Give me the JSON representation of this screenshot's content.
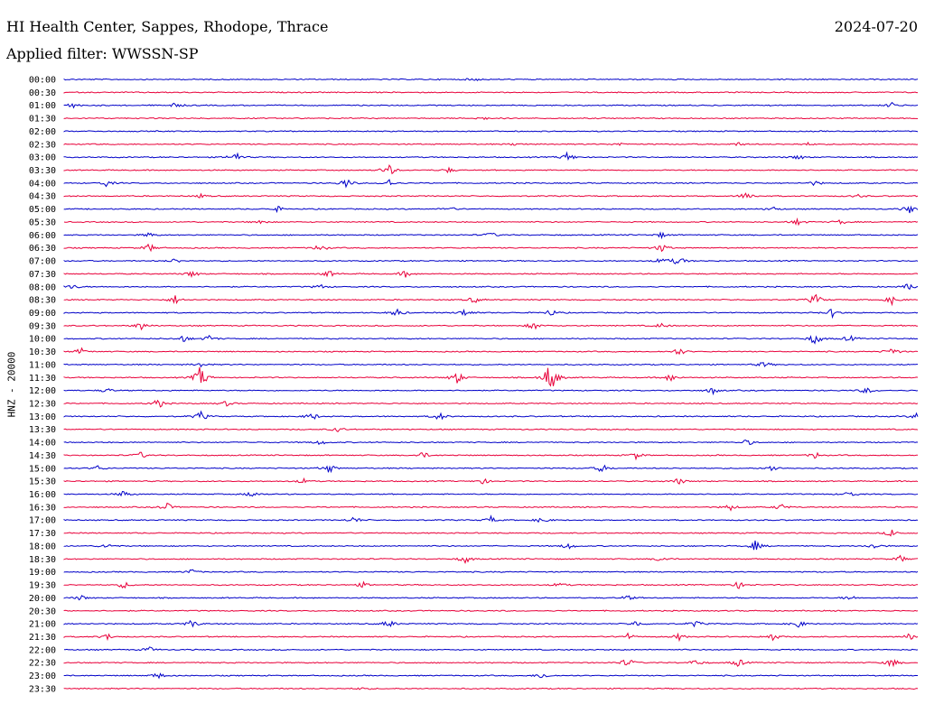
{
  "header": {
    "station": "HI Health Center, Sappes, Rhodope, Thrace",
    "date": "2024-07-20",
    "filter": "Applied filter: WWSSN-SP"
  },
  "colors": {
    "even": "#0000c8",
    "odd": "#e8003a",
    "background": "#ffffff"
  },
  "chart_data": {
    "type": "line",
    "title": "HI Health Center, Sappes, Rhodope, Thrace",
    "ylabel": "HNZ - 20000",
    "grid": false,
    "rows": [
      {
        "label": "00:00",
        "events": [
          {
            "t": 0.48,
            "a": 2
          }
        ]
      },
      {
        "label": "00:30",
        "events": []
      },
      {
        "label": "01:00",
        "events": [
          {
            "t": 0.01,
            "a": 3
          },
          {
            "t": 0.13,
            "a": 3
          },
          {
            "t": 0.97,
            "a": 3
          }
        ]
      },
      {
        "label": "01:30",
        "events": [
          {
            "t": 0.49,
            "a": 2
          }
        ]
      },
      {
        "label": "02:00",
        "events": []
      },
      {
        "label": "02:30",
        "events": [
          {
            "t": 0.53,
            "a": 2
          },
          {
            "t": 0.65,
            "a": 2
          },
          {
            "t": 0.79,
            "a": 2
          },
          {
            "t": 0.87,
            "a": 2
          }
        ]
      },
      {
        "label": "03:00",
        "events": [
          {
            "t": 0.2,
            "a": 7
          },
          {
            "t": 0.59,
            "a": 6
          },
          {
            "t": 0.86,
            "a": 3
          }
        ]
      },
      {
        "label": "03:30",
        "events": [
          {
            "t": 0.38,
            "a": 8
          },
          {
            "t": 0.45,
            "a": 3
          }
        ]
      },
      {
        "label": "04:00",
        "events": [
          {
            "t": 0.05,
            "a": 4
          },
          {
            "t": 0.33,
            "a": 6
          },
          {
            "t": 0.38,
            "a": 5
          },
          {
            "t": 0.88,
            "a": 3
          }
        ]
      },
      {
        "label": "04:30",
        "events": [
          {
            "t": 0.16,
            "a": 2
          },
          {
            "t": 0.8,
            "a": 6
          },
          {
            "t": 0.93,
            "a": 2
          }
        ]
      },
      {
        "label": "05:00",
        "events": [
          {
            "t": 0.25,
            "a": 3
          },
          {
            "t": 0.45,
            "a": 3
          },
          {
            "t": 0.83,
            "a": 3
          },
          {
            "t": 0.99,
            "a": 5
          }
        ]
      },
      {
        "label": "05:30",
        "events": [
          {
            "t": 0.23,
            "a": 3
          },
          {
            "t": 0.86,
            "a": 4
          },
          {
            "t": 0.91,
            "a": 3
          }
        ]
      },
      {
        "label": "06:00",
        "events": [
          {
            "t": 0.1,
            "a": 3
          },
          {
            "t": 0.5,
            "a": 3
          },
          {
            "t": 0.7,
            "a": 3
          }
        ]
      },
      {
        "label": "06:30",
        "events": [
          {
            "t": 0.1,
            "a": 5
          },
          {
            "t": 0.3,
            "a": 5
          },
          {
            "t": 0.7,
            "a": 5
          }
        ]
      },
      {
        "label": "07:00",
        "events": [
          {
            "t": 0.13,
            "a": 3
          },
          {
            "t": 0.7,
            "a": 4
          },
          {
            "t": 0.72,
            "a": 6
          }
        ]
      },
      {
        "label": "07:30",
        "events": [
          {
            "t": 0.15,
            "a": 4
          },
          {
            "t": 0.31,
            "a": 4
          },
          {
            "t": 0.4,
            "a": 4
          }
        ]
      },
      {
        "label": "08:00",
        "events": [
          {
            "t": 0.01,
            "a": 3
          },
          {
            "t": 0.3,
            "a": 3
          },
          {
            "t": 0.99,
            "a": 4
          }
        ]
      },
      {
        "label": "08:30",
        "events": [
          {
            "t": 0.13,
            "a": 5
          },
          {
            "t": 0.48,
            "a": 4
          },
          {
            "t": 0.88,
            "a": 7
          },
          {
            "t": 0.97,
            "a": 5
          }
        ]
      },
      {
        "label": "09:00",
        "events": [
          {
            "t": 0.39,
            "a": 5
          },
          {
            "t": 0.47,
            "a": 5
          },
          {
            "t": 0.57,
            "a": 4
          },
          {
            "t": 0.9,
            "a": 5
          }
        ]
      },
      {
        "label": "09:30",
        "events": [
          {
            "t": 0.09,
            "a": 5
          },
          {
            "t": 0.55,
            "a": 5
          },
          {
            "t": 0.7,
            "a": 3
          }
        ]
      },
      {
        "label": "10:00",
        "events": [
          {
            "t": 0.14,
            "a": 4
          },
          {
            "t": 0.17,
            "a": 4
          },
          {
            "t": 0.88,
            "a": 8
          },
          {
            "t": 0.92,
            "a": 4
          }
        ]
      },
      {
        "label": "10:30",
        "events": [
          {
            "t": 0.02,
            "a": 4
          },
          {
            "t": 0.72,
            "a": 5
          },
          {
            "t": 0.97,
            "a": 5
          }
        ]
      },
      {
        "label": "11:00",
        "events": [
          {
            "t": 0.16,
            "a": 3
          },
          {
            "t": 0.82,
            "a": 4
          }
        ]
      },
      {
        "label": "11:30",
        "events": [
          {
            "t": 0.16,
            "a": 14
          },
          {
            "t": 0.46,
            "a": 8
          },
          {
            "t": 0.57,
            "a": 22
          },
          {
            "t": 0.71,
            "a": 5
          }
        ]
      },
      {
        "label": "12:00",
        "events": [
          {
            "t": 0.05,
            "a": 3
          },
          {
            "t": 0.76,
            "a": 4
          },
          {
            "t": 0.94,
            "a": 4
          }
        ]
      },
      {
        "label": "12:30",
        "events": [
          {
            "t": 0.11,
            "a": 6
          },
          {
            "t": 0.19,
            "a": 3
          }
        ]
      },
      {
        "label": "13:00",
        "events": [
          {
            "t": 0.16,
            "a": 6
          },
          {
            "t": 0.29,
            "a": 5
          },
          {
            "t": 0.44,
            "a": 5
          },
          {
            "t": 1.0,
            "a": 5
          }
        ]
      },
      {
        "label": "13:30",
        "events": [
          {
            "t": 0.32,
            "a": 3
          }
        ]
      },
      {
        "label": "14:00",
        "events": [
          {
            "t": 0.3,
            "a": 3
          },
          {
            "t": 0.8,
            "a": 4
          }
        ]
      },
      {
        "label": "14:30",
        "events": [
          {
            "t": 0.09,
            "a": 4
          },
          {
            "t": 0.42,
            "a": 4
          },
          {
            "t": 0.67,
            "a": 4
          },
          {
            "t": 0.88,
            "a": 4
          }
        ]
      },
      {
        "label": "15:00",
        "events": [
          {
            "t": 0.04,
            "a": 3
          },
          {
            "t": 0.31,
            "a": 6
          },
          {
            "t": 0.63,
            "a": 5
          },
          {
            "t": 0.83,
            "a": 4
          }
        ]
      },
      {
        "label": "15:30",
        "events": [
          {
            "t": 0.28,
            "a": 3
          },
          {
            "t": 0.49,
            "a": 4
          },
          {
            "t": 0.72,
            "a": 4
          }
        ]
      },
      {
        "label": "16:00",
        "events": [
          {
            "t": 0.07,
            "a": 4
          },
          {
            "t": 0.22,
            "a": 4
          },
          {
            "t": 0.92,
            "a": 4
          }
        ]
      },
      {
        "label": "16:30",
        "events": [
          {
            "t": 0.12,
            "a": 5
          },
          {
            "t": 0.78,
            "a": 4
          },
          {
            "t": 0.84,
            "a": 4
          }
        ]
      },
      {
        "label": "17:00",
        "events": [
          {
            "t": 0.34,
            "a": 4
          },
          {
            "t": 0.5,
            "a": 4
          },
          {
            "t": 0.56,
            "a": 4
          }
        ]
      },
      {
        "label": "17:30",
        "events": [
          {
            "t": 0.97,
            "a": 5
          }
        ]
      },
      {
        "label": "18:00",
        "events": [
          {
            "t": 0.05,
            "a": 3
          },
          {
            "t": 0.59,
            "a": 4
          },
          {
            "t": 0.81,
            "a": 6
          },
          {
            "t": 0.95,
            "a": 4
          }
        ]
      },
      {
        "label": "18:30",
        "events": [
          {
            "t": 0.47,
            "a": 5
          },
          {
            "t": 0.7,
            "a": 4
          },
          {
            "t": 0.98,
            "a": 4
          }
        ]
      },
      {
        "label": "19:00",
        "events": [
          {
            "t": 0.15,
            "a": 3
          }
        ]
      },
      {
        "label": "19:30",
        "events": [
          {
            "t": 0.07,
            "a": 4
          },
          {
            "t": 0.35,
            "a": 3
          },
          {
            "t": 0.58,
            "a": 3
          },
          {
            "t": 0.79,
            "a": 4
          }
        ]
      },
      {
        "label": "20:00",
        "events": [
          {
            "t": 0.02,
            "a": 3
          },
          {
            "t": 0.66,
            "a": 3
          },
          {
            "t": 0.92,
            "a": 3
          }
        ]
      },
      {
        "label": "20:30",
        "events": []
      },
      {
        "label": "21:00",
        "events": [
          {
            "t": 0.15,
            "a": 5
          },
          {
            "t": 0.38,
            "a": 5
          },
          {
            "t": 0.67,
            "a": 4
          },
          {
            "t": 0.74,
            "a": 4
          },
          {
            "t": 0.86,
            "a": 5
          }
        ]
      },
      {
        "label": "21:30",
        "events": [
          {
            "t": 0.05,
            "a": 4
          },
          {
            "t": 0.66,
            "a": 4
          },
          {
            "t": 0.72,
            "a": 4
          },
          {
            "t": 0.83,
            "a": 5
          },
          {
            "t": 0.99,
            "a": 4
          }
        ]
      },
      {
        "label": "22:00",
        "events": [
          {
            "t": 0.1,
            "a": 3
          }
        ]
      },
      {
        "label": "22:30",
        "events": [
          {
            "t": 0.66,
            "a": 6
          },
          {
            "t": 0.74,
            "a": 4
          },
          {
            "t": 0.79,
            "a": 5
          },
          {
            "t": 0.97,
            "a": 6
          }
        ]
      },
      {
        "label": "23:00",
        "events": [
          {
            "t": 0.11,
            "a": 4
          },
          {
            "t": 0.56,
            "a": 4
          }
        ]
      },
      {
        "label": "23:30",
        "events": [
          {
            "t": 0.35,
            "a": 2
          }
        ]
      }
    ]
  }
}
